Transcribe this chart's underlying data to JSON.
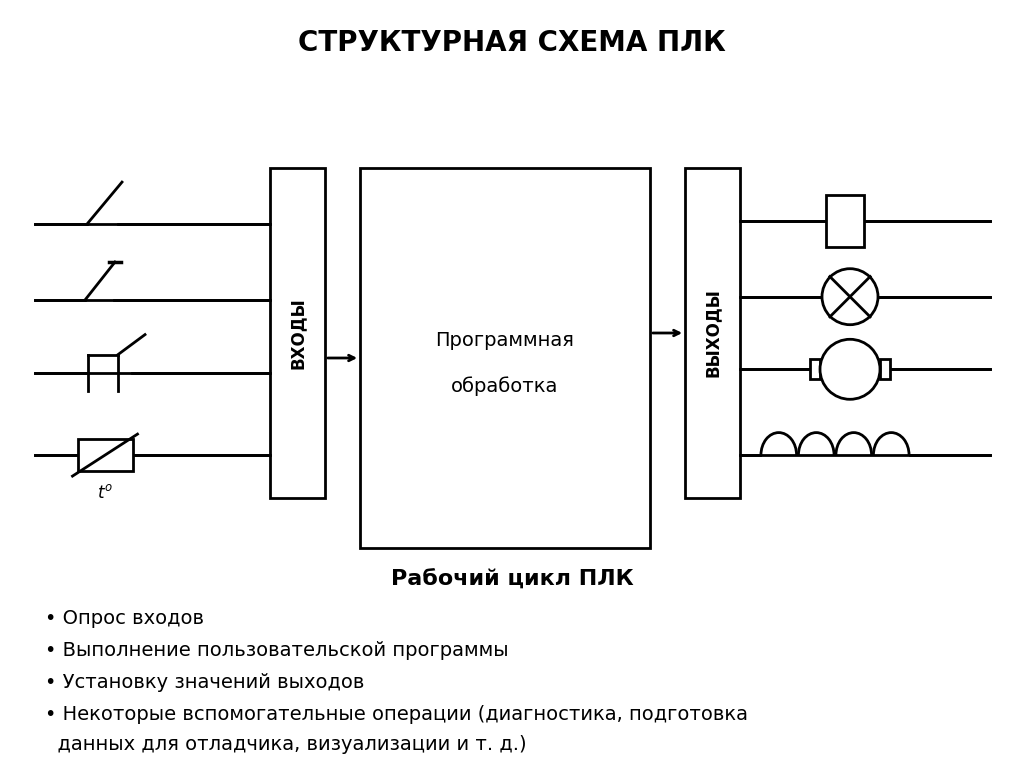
{
  "title": "СТРУКТУРНАЯ СХЕМА ПЛК",
  "title_fontsize": 20,
  "subtitle": "Рабочий цикл ПЛК",
  "subtitle_fontsize": 16,
  "prog_text_line1": "Программная",
  "prog_text_line2": "обработка",
  "prog_fontsize": 14,
  "vhody_text": "ВХОДЫ",
  "vyhody_text": "ВЫХОДЫ",
  "block_label_fontsize": 12,
  "bullet_fontsize": 14,
  "bg_color": "#ffffff",
  "box_color": "#ffffff",
  "line_color": "#000000",
  "lw": 2.0
}
